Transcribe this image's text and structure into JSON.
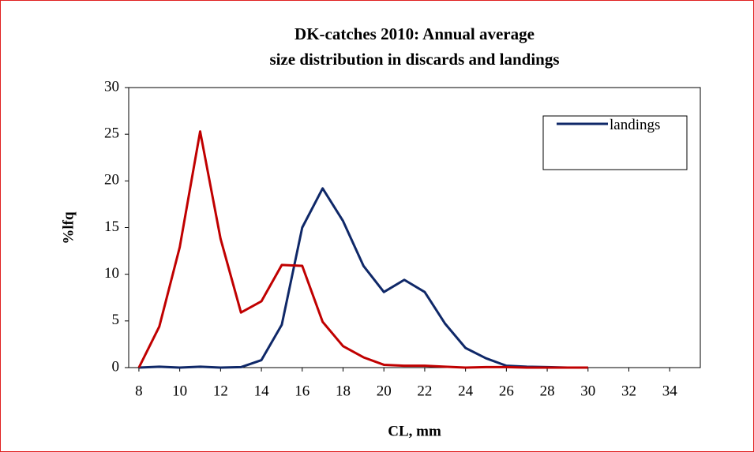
{
  "chart_data": {
    "type": "line",
    "title": [
      "DK-catches 2010: Annual average",
      "size distribution in discards and landings"
    ],
    "x_label": "CL, mm",
    "y_label": "%lfq",
    "x": [
      8,
      9,
      10,
      11,
      12,
      13,
      14,
      15,
      16,
      17,
      18,
      19,
      20,
      21,
      22,
      23,
      24,
      25,
      26,
      27,
      28,
      29,
      30
    ],
    "series": [
      {
        "name": "landings",
        "color": "#0f2868",
        "values": [
          0,
          0.1,
          0,
          0.1,
          0,
          0.05,
          0.8,
          4.6,
          15,
          19.2,
          15.7,
          10.9,
          8.1,
          9.4,
          8.1,
          4.7,
          2.1,
          1,
          0.2,
          0.1,
          0.05,
          0,
          0
        ]
      },
      {
        "color": "#c00000",
        "values": [
          0,
          4.4,
          12.9,
          25.3,
          13.8,
          5.9,
          7.1,
          11,
          10.9,
          4.9,
          2.3,
          1.1,
          0.3,
          0.2,
          0.2,
          0.1,
          0,
          0.05,
          0.05,
          0,
          0,
          0,
          0
        ]
      }
    ],
    "xlim": [
      7.5,
      35.5
    ],
    "xticks": [
      8,
      10,
      12,
      14,
      16,
      18,
      20,
      22,
      24,
      26,
      28,
      30,
      32,
      34
    ],
    "ylim": [
      0,
      30
    ],
    "yticks": [
      0,
      5,
      10,
      15,
      20,
      25,
      30
    ],
    "legend": "top-right"
  }
}
